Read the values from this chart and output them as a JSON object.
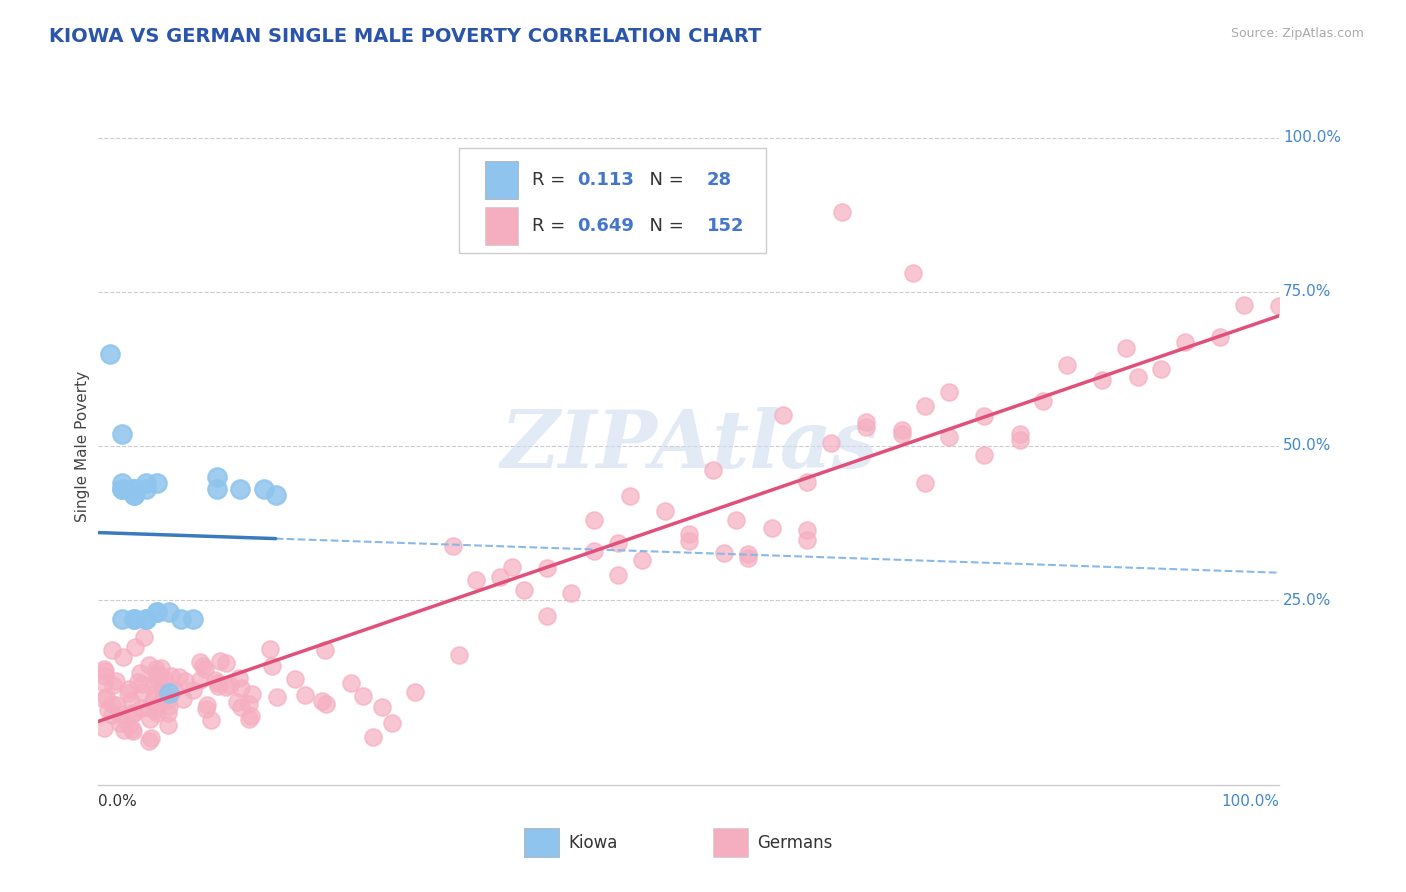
{
  "title": "KIOWA VS GERMAN SINGLE MALE POVERTY CORRELATION CHART",
  "source_text": "Source: ZipAtlas.com",
  "ylabel": "Single Male Poverty",
  "kiowa_R": 0.113,
  "kiowa_N": 28,
  "german_R": 0.649,
  "german_N": 152,
  "kiowa_color": "#8ec4ed",
  "kiowa_edge_color": "#5a9fd4",
  "german_color": "#f5aec0",
  "german_edge_color": "#e07090",
  "kiowa_line_color": "#3a7abf",
  "german_line_color": "#e0507a",
  "dashed_line_color": "#8ab8e8",
  "grid_color": "#cccccc",
  "title_color": "#2a55aa",
  "source_color": "#aaaaaa",
  "blue_text_color": "#4477cc",
  "watermark_color": "#d0ddf0",
  "y_label_color": "#4488cc",
  "xlabel_right_color": "#4488cc"
}
